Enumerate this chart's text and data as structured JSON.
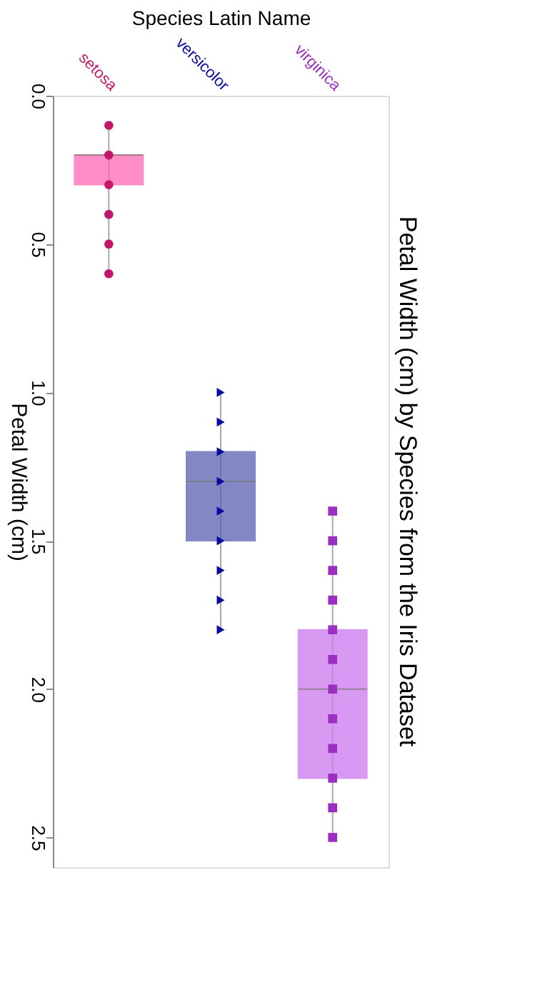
{
  "chart_data": {
    "type": "box",
    "title": "Petal Width (cm) by Species from the Iris Dataset",
    "xlabel": "Species Latin Name",
    "ylabel": "Petal Width (cm)",
    "categories": [
      "setosa",
      "versicolor",
      "virginica"
    ],
    "boxes": [
      {
        "low": 0.1,
        "q1": 0.2,
        "median": 0.2,
        "q3": 0.3,
        "high": 0.6
      },
      {
        "low": 1.0,
        "q1": 1.2,
        "median": 1.3,
        "q3": 1.5,
        "high": 1.8
      },
      {
        "low": 1.4,
        "q1": 1.8,
        "median": 2.0,
        "q3": 2.3,
        "high": 2.5
      }
    ],
    "colors": [
      "#ff69b4",
      "#5a5fb0",
      "#cc77f0"
    ],
    "series": [
      {
        "type": "scatter",
        "marker": "circle",
        "color": "#c2186b",
        "x": [
          "setosa",
          "setosa",
          "setosa",
          "setosa",
          "setosa",
          "setosa"
        ],
        "values": [
          0.1,
          0.2,
          0.3,
          0.4,
          0.5,
          0.6
        ]
      },
      {
        "type": "scatter",
        "marker": "triangle",
        "color": "#0a0aa0",
        "x": [
          "versicolor",
          "versicolor",
          "versicolor",
          "versicolor",
          "versicolor",
          "versicolor",
          "versicolor",
          "versicolor",
          "versicolor"
        ],
        "values": [
          1.0,
          1.1,
          1.2,
          1.3,
          1.4,
          1.5,
          1.6,
          1.7,
          1.8
        ]
      },
      {
        "type": "scatter",
        "marker": "square",
        "color": "#9b30c0",
        "x": [
          "virginica",
          "virginica",
          "virginica",
          "virginica",
          "virginica",
          "virginica",
          "virginica",
          "virginica",
          "virginica",
          "virginica",
          "virginica",
          "virginica"
        ],
        "values": [
          1.4,
          1.5,
          1.6,
          1.7,
          1.8,
          1.9,
          2.0,
          2.1,
          2.2,
          2.3,
          2.4,
          2.5
        ]
      }
    ],
    "ylim": [
      2.6,
      0
    ],
    "yticks": [
      {
        "value": 0,
        "label": "0.0"
      },
      {
        "value": 0.5,
        "label": "0.5"
      },
      {
        "value": 1,
        "label": "1.0"
      },
      {
        "value": 1.5,
        "label": "1.5"
      },
      {
        "value": 2,
        "label": "2.0"
      },
      {
        "value": 2.5,
        "label": "2.5"
      }
    ],
    "grid": false
  }
}
